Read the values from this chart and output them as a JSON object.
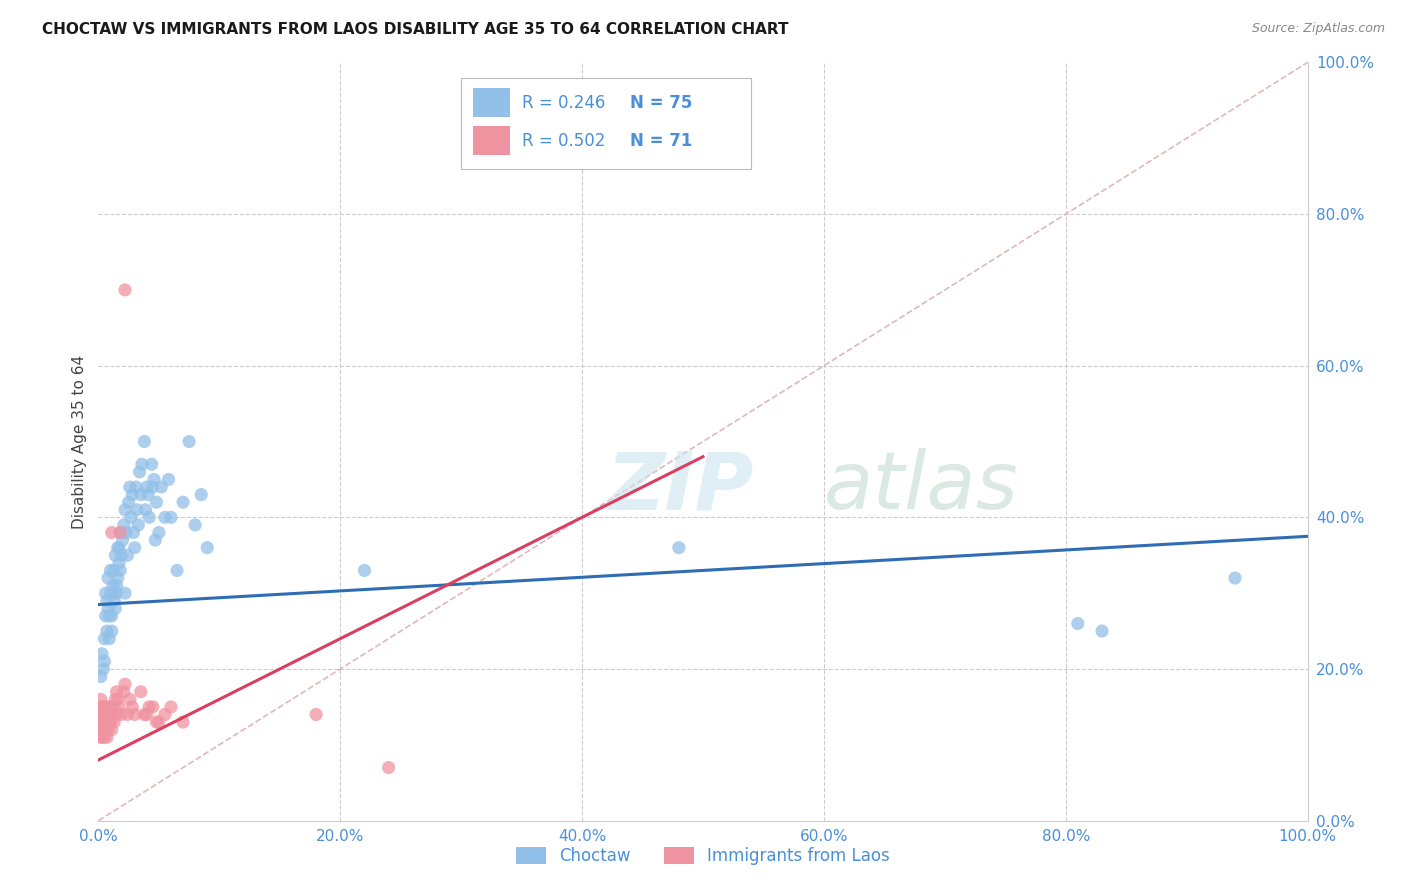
{
  "title": "CHOCTAW VS IMMIGRANTS FROM LAOS DISABILITY AGE 35 TO 64 CORRELATION CHART",
  "source": "Source: ZipAtlas.com",
  "ylabel_label": "Disability Age 35 to 64",
  "xlim": [
    0.0,
    1.0
  ],
  "ylim": [
    0.0,
    1.0
  ],
  "watermark_zip": "ZIP",
  "watermark_atlas": "atlas",
  "choctaw_color": "#92c0e8",
  "choctaw_edge_color": "#92c0e8",
  "laos_color": "#f093a0",
  "laos_edge_color": "#f093a0",
  "choctaw_line_color": "#2e6db4",
  "laos_line_color": "#d94060",
  "diagonal_color": "#e0b8b8",
  "background_color": "#ffffff",
  "grid_color": "#cccccc",
  "tick_color": "#4a90d9",
  "choctaw_scatter": [
    [
      0.002,
      0.19
    ],
    [
      0.003,
      0.22
    ],
    [
      0.004,
      0.2
    ],
    [
      0.005,
      0.21
    ],
    [
      0.005,
      0.24
    ],
    [
      0.006,
      0.27
    ],
    [
      0.006,
      0.3
    ],
    [
      0.007,
      0.25
    ],
    [
      0.007,
      0.29
    ],
    [
      0.008,
      0.28
    ],
    [
      0.008,
      0.32
    ],
    [
      0.009,
      0.27
    ],
    [
      0.009,
      0.24
    ],
    [
      0.01,
      0.3
    ],
    [
      0.01,
      0.33
    ],
    [
      0.011,
      0.25
    ],
    [
      0.011,
      0.27
    ],
    [
      0.012,
      0.3
    ],
    [
      0.012,
      0.31
    ],
    [
      0.013,
      0.29
    ],
    [
      0.013,
      0.33
    ],
    [
      0.014,
      0.28
    ],
    [
      0.014,
      0.35
    ],
    [
      0.015,
      0.31
    ],
    [
      0.015,
      0.3
    ],
    [
      0.016,
      0.36
    ],
    [
      0.016,
      0.32
    ],
    [
      0.017,
      0.34
    ],
    [
      0.017,
      0.36
    ],
    [
      0.018,
      0.33
    ],
    [
      0.018,
      0.38
    ],
    [
      0.019,
      0.35
    ],
    [
      0.02,
      0.37
    ],
    [
      0.021,
      0.39
    ],
    [
      0.022,
      0.41
    ],
    [
      0.022,
      0.3
    ],
    [
      0.023,
      0.38
    ],
    [
      0.024,
      0.35
    ],
    [
      0.025,
      0.42
    ],
    [
      0.026,
      0.44
    ],
    [
      0.027,
      0.4
    ],
    [
      0.028,
      0.43
    ],
    [
      0.029,
      0.38
    ],
    [
      0.03,
      0.36
    ],
    [
      0.031,
      0.44
    ],
    [
      0.032,
      0.41
    ],
    [
      0.033,
      0.39
    ],
    [
      0.034,
      0.46
    ],
    [
      0.035,
      0.43
    ],
    [
      0.036,
      0.47
    ],
    [
      0.038,
      0.5
    ],
    [
      0.039,
      0.41
    ],
    [
      0.04,
      0.44
    ],
    [
      0.041,
      0.43
    ],
    [
      0.042,
      0.4
    ],
    [
      0.044,
      0.47
    ],
    [
      0.045,
      0.44
    ],
    [
      0.046,
      0.45
    ],
    [
      0.047,
      0.37
    ],
    [
      0.048,
      0.42
    ],
    [
      0.05,
      0.38
    ],
    [
      0.052,
      0.44
    ],
    [
      0.055,
      0.4
    ],
    [
      0.058,
      0.45
    ],
    [
      0.06,
      0.4
    ],
    [
      0.065,
      0.33
    ],
    [
      0.07,
      0.42
    ],
    [
      0.075,
      0.5
    ],
    [
      0.08,
      0.39
    ],
    [
      0.085,
      0.43
    ],
    [
      0.09,
      0.36
    ],
    [
      0.22,
      0.33
    ],
    [
      0.48,
      0.36
    ],
    [
      0.81,
      0.26
    ],
    [
      0.83,
      0.25
    ],
    [
      0.94,
      0.32
    ]
  ],
  "laos_scatter": [
    [
      0.001,
      0.12
    ],
    [
      0.001,
      0.14
    ],
    [
      0.002,
      0.11
    ],
    [
      0.002,
      0.13
    ],
    [
      0.002,
      0.15
    ],
    [
      0.002,
      0.12
    ],
    [
      0.002,
      0.16
    ],
    [
      0.003,
      0.13
    ],
    [
      0.003,
      0.12
    ],
    [
      0.003,
      0.14
    ],
    [
      0.003,
      0.13
    ],
    [
      0.003,
      0.11
    ],
    [
      0.004,
      0.12
    ],
    [
      0.004,
      0.15
    ],
    [
      0.004,
      0.12
    ],
    [
      0.004,
      0.13
    ],
    [
      0.004,
      0.14
    ],
    [
      0.005,
      0.12
    ],
    [
      0.005,
      0.15
    ],
    [
      0.005,
      0.13
    ],
    [
      0.005,
      0.11
    ],
    [
      0.005,
      0.13
    ],
    [
      0.006,
      0.12
    ],
    [
      0.006,
      0.14
    ],
    [
      0.006,
      0.15
    ],
    [
      0.006,
      0.12
    ],
    [
      0.006,
      0.14
    ],
    [
      0.007,
      0.13
    ],
    [
      0.007,
      0.15
    ],
    [
      0.007,
      0.12
    ],
    [
      0.007,
      0.13
    ],
    [
      0.007,
      0.11
    ],
    [
      0.008,
      0.12
    ],
    [
      0.008,
      0.14
    ],
    [
      0.008,
      0.13
    ],
    [
      0.009,
      0.13
    ],
    [
      0.009,
      0.15
    ],
    [
      0.01,
      0.13
    ],
    [
      0.01,
      0.14
    ],
    [
      0.011,
      0.12
    ],
    [
      0.011,
      0.38
    ],
    [
      0.012,
      0.15
    ],
    [
      0.012,
      0.14
    ],
    [
      0.013,
      0.13
    ],
    [
      0.014,
      0.16
    ],
    [
      0.015,
      0.17
    ],
    [
      0.015,
      0.14
    ],
    [
      0.016,
      0.16
    ],
    [
      0.017,
      0.15
    ],
    [
      0.018,
      0.38
    ],
    [
      0.019,
      0.14
    ],
    [
      0.021,
      0.17
    ],
    [
      0.022,
      0.18
    ],
    [
      0.024,
      0.14
    ],
    [
      0.026,
      0.16
    ],
    [
      0.028,
      0.15
    ],
    [
      0.03,
      0.14
    ],
    [
      0.022,
      0.7
    ],
    [
      0.035,
      0.17
    ],
    [
      0.038,
      0.14
    ],
    [
      0.04,
      0.14
    ],
    [
      0.042,
      0.15
    ],
    [
      0.045,
      0.15
    ],
    [
      0.048,
      0.13
    ],
    [
      0.05,
      0.13
    ],
    [
      0.055,
      0.14
    ],
    [
      0.06,
      0.15
    ],
    [
      0.07,
      0.13
    ],
    [
      0.18,
      0.14
    ],
    [
      0.24,
      0.07
    ]
  ],
  "choctaw_line": {
    "x0": 0.0,
    "y0": 0.285,
    "x1": 1.0,
    "y1": 0.375
  },
  "laos_line": {
    "x0": 0.0,
    "y0": 0.08,
    "x1": 0.5,
    "y1": 0.48
  },
  "diagonal_line": {
    "x0": 0.0,
    "y0": 0.0,
    "x1": 1.0,
    "y1": 1.0
  },
  "legend_r1": "R = 0.246",
  "legend_n1": "N = 75",
  "legend_r2": "R = 0.502",
  "legend_n2": "N = 71",
  "bottom_legend": [
    "Choctaw",
    "Immigrants from Laos"
  ]
}
